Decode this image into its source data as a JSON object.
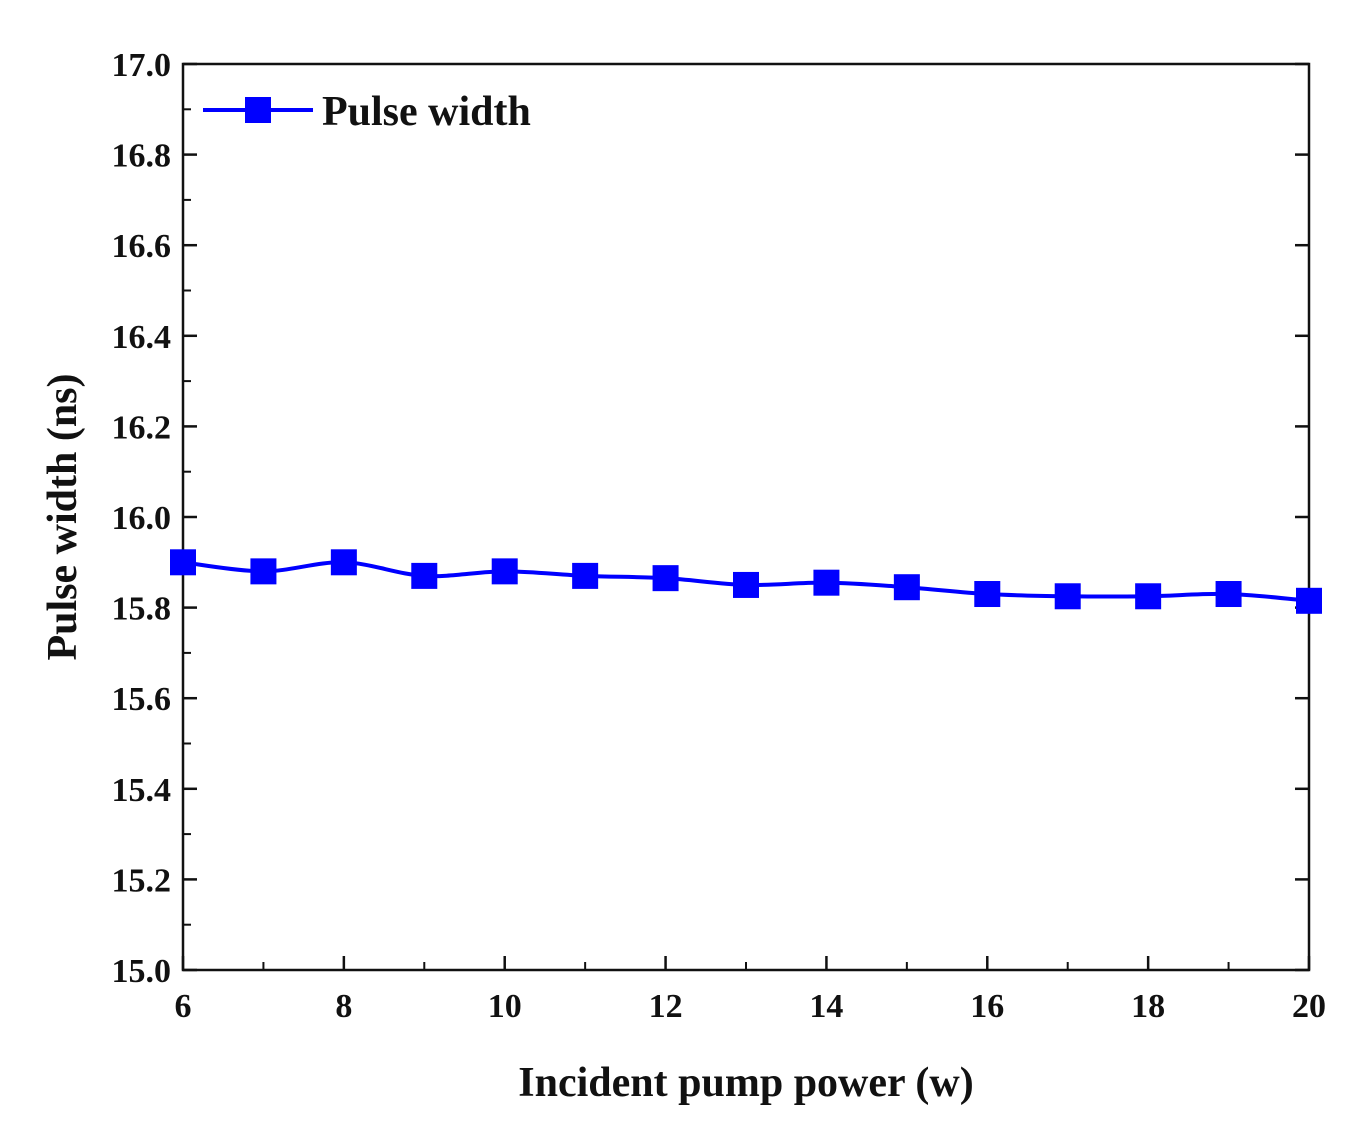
{
  "chart_data": {
    "type": "line",
    "title": "",
    "xlabel": "Incident pump power (w)",
    "ylabel": "Pulse width (ns)",
    "xlim": [
      6,
      20
    ],
    "ylim": [
      15.0,
      17.0
    ],
    "x_ticks": [
      6,
      8,
      10,
      12,
      14,
      16,
      18,
      20
    ],
    "x_tick_labels": [
      "6",
      "8",
      "10",
      "12",
      "14",
      "16",
      "18",
      "20"
    ],
    "y_ticks": [
      15.0,
      15.2,
      15.4,
      15.6,
      15.8,
      16.0,
      16.2,
      16.4,
      16.6,
      16.8,
      17.0
    ],
    "y_tick_labels": [
      "15.0",
      "15.2",
      "15.4",
      "15.6",
      "15.8",
      "16.0",
      "16.2",
      "16.4",
      "16.6",
      "16.8",
      "17.0"
    ],
    "grid": false,
    "legend_position": "top-left",
    "series": [
      {
        "name": "Pulse width",
        "color": "#0000ff",
        "marker": "square",
        "x": [
          6,
          7,
          8,
          9,
          10,
          11,
          12,
          13,
          14,
          15,
          16,
          17,
          18,
          19,
          20
        ],
        "values": [
          15.9,
          15.88,
          15.9,
          15.87,
          15.88,
          15.87,
          15.865,
          15.85,
          15.855,
          15.845,
          15.83,
          15.825,
          15.825,
          15.83,
          15.815
        ]
      }
    ]
  }
}
